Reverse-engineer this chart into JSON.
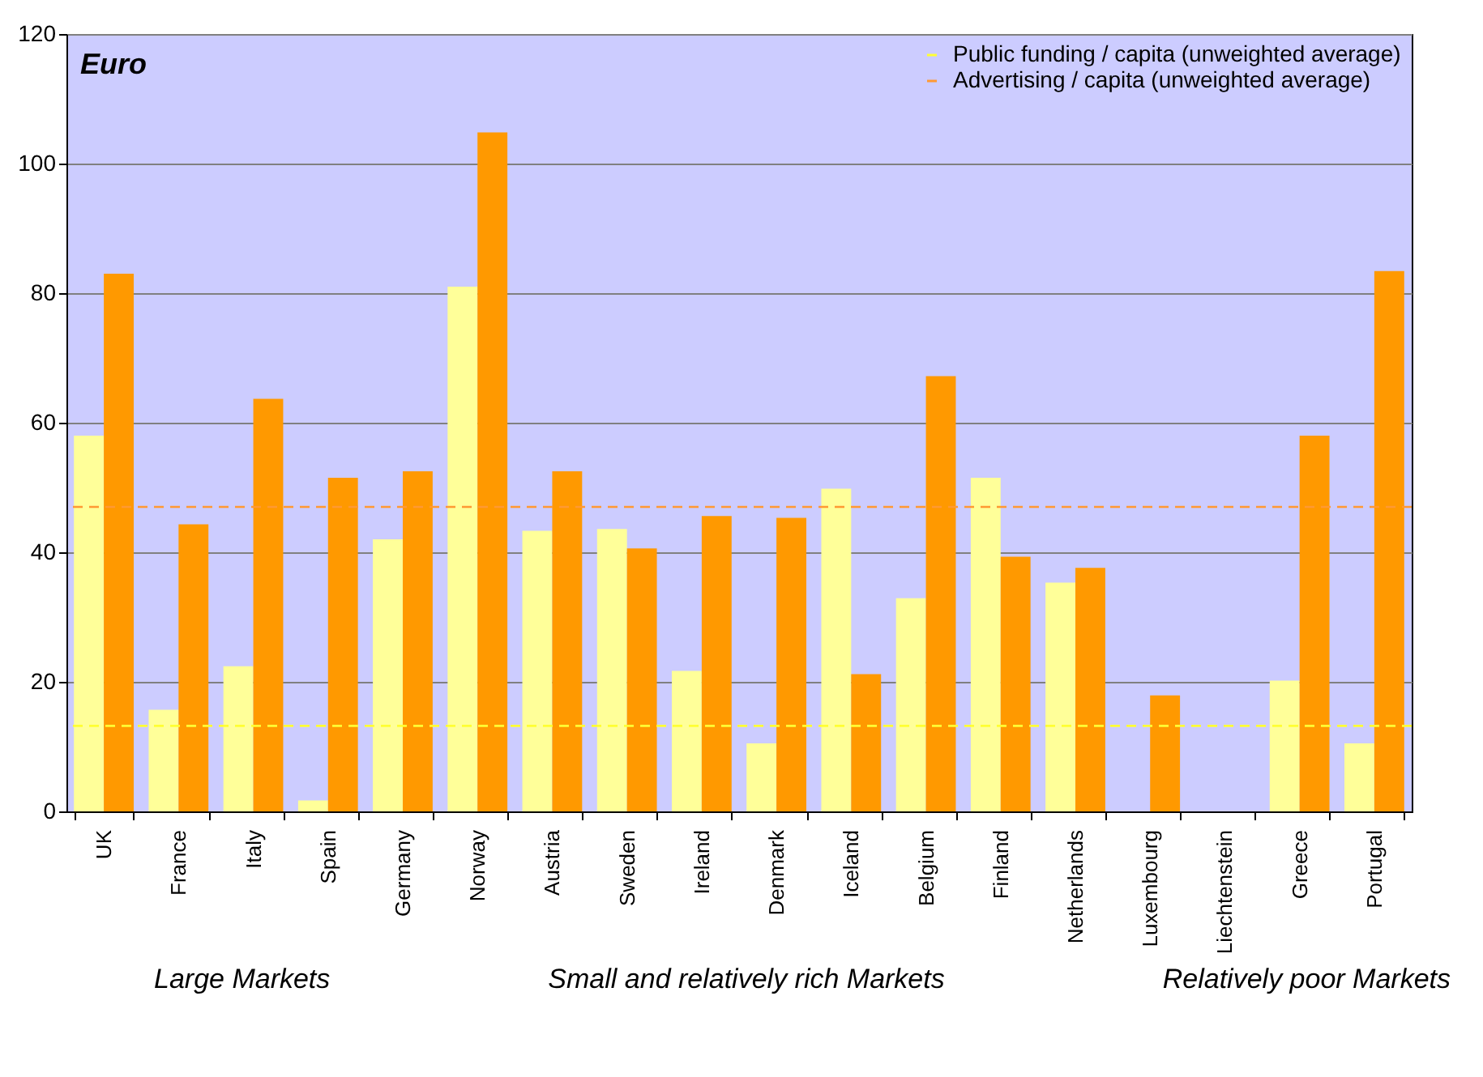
{
  "chart_data": {
    "type": "bar",
    "ylabel": "Euro",
    "categories": [
      "UK",
      "France",
      "Italy",
      "Spain",
      "Germany",
      "Norway",
      "Austria",
      "Sweden",
      "Ireland",
      "Denmark",
      "Iceland",
      "Belgium",
      "Finland",
      "Netherlands",
      "Luxembourg",
      "Liechtenstein",
      "Greece",
      "Portugal"
    ],
    "series": [
      {
        "color": "#ffff99",
        "values": [
          58,
          15.7,
          22.4,
          1.7,
          42,
          81,
          43.3,
          43.6,
          21.7,
          10.5,
          49.8,
          32.9,
          51.5,
          35.3,
          null,
          null,
          20.2,
          10.5
        ]
      },
      {
        "color": "#ff9900",
        "values": [
          83,
          44.3,
          63.7,
          51.5,
          52.5,
          104.8,
          52.5,
          40.6,
          45.6,
          45.3,
          21.2,
          67.2,
          39.3,
          37.6,
          17.9,
          null,
          58,
          83.4
        ]
      }
    ],
    "ylim": [
      0,
      120
    ],
    "yticks": [
      0,
      20,
      40,
      60,
      80,
      100,
      120
    ],
    "grid": "y",
    "legend": "top right",
    "ref_lines": [
      {
        "axis": "y",
        "value": 13.2,
        "label": "Public funding / capita (unweighted average)",
        "color": "#ffff33",
        "line_style": "dashed"
      },
      {
        "axis": "y",
        "value": 47,
        "label": "Advertising / capita (unweighted average)",
        "color": "#ff9933",
        "line_style": "dashed"
      }
    ],
    "annotations": [
      "Large Markets",
      "Small and relatively rich Markets",
      "Relatively poor Markets"
    ]
  }
}
